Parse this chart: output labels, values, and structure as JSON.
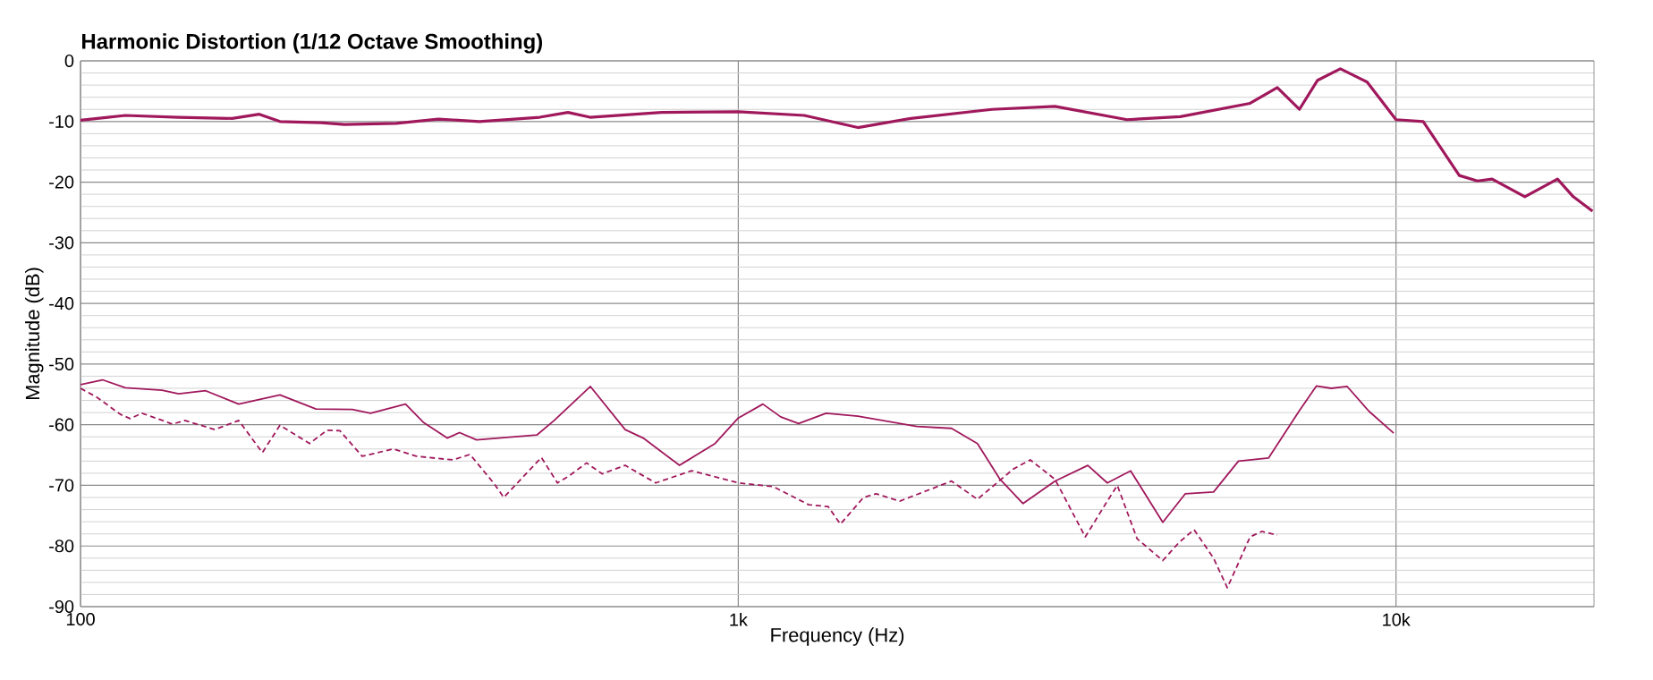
{
  "chart_data": {
    "type": "line",
    "title": "Harmonic Distortion (1/12 Octave Smoothing)",
    "xlabel": "Frequency (Hz)",
    "ylabel": "Magnitude (dB)",
    "log": "x",
    "grid": true,
    "marker": "none",
    "xlim": [
      100,
      20000
    ],
    "xticks": [
      100,
      {
        "value": 1000,
        "label": "1k"
      },
      {
        "value": 10000,
        "label": "10k"
      }
    ],
    "ylim": [
      -90,
      0
    ],
    "yticks": [
      -90,
      -80,
      -70,
      -60,
      -50,
      -40,
      -30,
      -20,
      -10,
      0
    ],
    "series": [
      {
        "color": "#a0185c",
        "line_style": "solid",
        "x": [
          100,
          110,
          117,
          141,
          170,
          187,
          201,
          232,
          252,
          302,
          350,
          404,
          499,
          551,
          595,
          765,
          1000,
          1260,
          1520,
          1830,
          2430,
          3030,
          3900,
          4700,
          6000,
          6600,
          7130,
          7600,
          8230,
          9040,
          10000,
          11000,
          12480,
          13300,
          14000,
          15700,
          17600,
          18600,
          19900
        ],
        "values": [
          -9.8,
          -9.3,
          -9.0,
          -9.3,
          -9.5,
          -8.8,
          -10.0,
          -10.2,
          -10.5,
          -10.3,
          -9.6,
          -10.0,
          -9.3,
          -8.5,
          -9.3,
          -8.5,
          -8.4,
          -9.0,
          -11.0,
          -9.5,
          -8.0,
          -7.5,
          -9.7,
          -9.2,
          -7.0,
          -4.4,
          -8.0,
          -3.2,
          -1.3,
          -3.5,
          -9.7,
          -10.0,
          -18.9,
          -19.8,
          -19.5,
          -22.4,
          -19.5,
          -22.4,
          -24.8
        ]
      },
      {
        "color": "#a0185c",
        "line_style": "solid",
        "x": [
          100,
          108,
          117,
          133,
          141,
          155,
          174,
          201,
          228,
          259,
          276,
          312,
          332,
          361,
          377,
          400,
          494,
          525,
          596,
          673,
          717,
          814,
          922,
          1000,
          1090,
          1160,
          1235,
          1360,
          1520,
          1870,
          2110,
          2310,
          2500,
          2710,
          3030,
          3400,
          3640,
          3950,
          4420,
          4780,
          5280,
          5760,
          6400,
          7130,
          7570,
          7970,
          8430,
          9100,
          9920
        ],
        "values": [
          -53.4,
          -52.6,
          -53.9,
          -54.3,
          -54.9,
          -54.4,
          -56.6,
          -55.1,
          -57.4,
          -57.5,
          -58.1,
          -56.6,
          -59.6,
          -62.2,
          -61.3,
          -62.5,
          -61.7,
          -59.3,
          -53.7,
          -60.8,
          -62.2,
          -66.7,
          -63.1,
          -58.9,
          -56.6,
          -58.7,
          -59.8,
          -58.1,
          -58.6,
          -60.3,
          -60.6,
          -63.1,
          -69.0,
          -73.0,
          -69.3,
          -66.7,
          -69.6,
          -67.6,
          -76.1,
          -71.4,
          -71.1,
          -66.0,
          -65.5,
          -57.7,
          -53.6,
          -54.0,
          -53.7,
          -57.8,
          -61.4
        ]
      },
      {
        "color": "#a0185c",
        "line_style": "dashed",
        "x": [
          100,
          106,
          115,
          119,
          124,
          138,
          144,
          160,
          174,
          189,
          201,
          223,
          237,
          248,
          268,
          299,
          324,
          368,
          391,
          426,
          440,
          502,
          531,
          552,
          588,
          621,
          673,
          749,
          849,
          1000,
          1130,
          1280,
          1370,
          1430,
          1550,
          1620,
          1760,
          2110,
          2310,
          2620,
          2780,
          3030,
          3370,
          3640,
          3770,
          4040,
          4420,
          4680,
          4930,
          5280,
          5540,
          6000,
          6250,
          6600
        ],
        "values": [
          -54.0,
          -55.5,
          -58.3,
          -59.0,
          -58.1,
          -59.9,
          -59.3,
          -60.8,
          -59.3,
          -64.6,
          -60.1,
          -63.1,
          -60.9,
          -61.0,
          -65.2,
          -64.0,
          -65.2,
          -65.8,
          -64.9,
          -69.8,
          -72.0,
          -65.4,
          -69.6,
          -68.5,
          -66.3,
          -68.1,
          -66.7,
          -69.6,
          -67.6,
          -69.6,
          -70.2,
          -73.2,
          -73.5,
          -76.4,
          -72.0,
          -71.4,
          -72.6,
          -69.3,
          -72.3,
          -67.3,
          -65.8,
          -69.0,
          -78.5,
          -72.6,
          -70.0,
          -78.8,
          -82.4,
          -79.4,
          -77.3,
          -82.0,
          -86.9,
          -78.5,
          -77.6,
          -78.2
        ]
      }
    ]
  }
}
